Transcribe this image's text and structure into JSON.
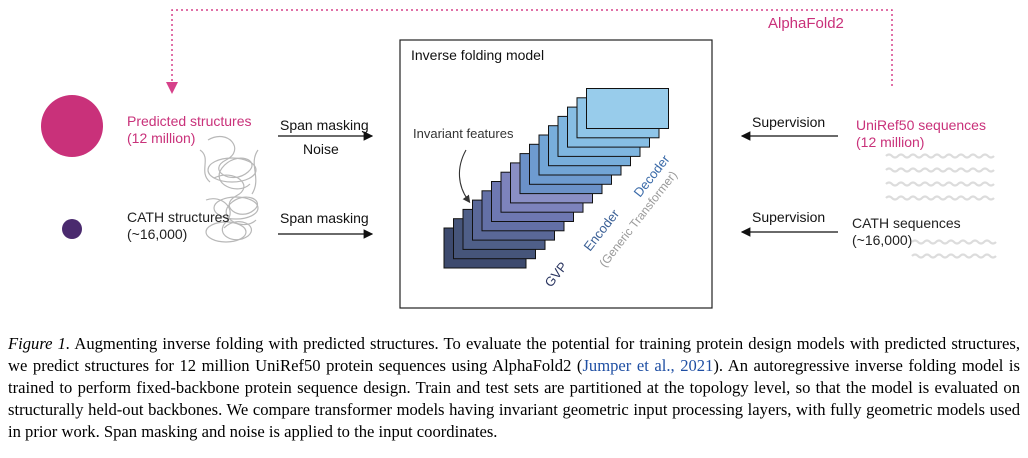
{
  "figure": {
    "alphafold_label": "AlphaFold2",
    "model_title": "Inverse folding model",
    "invariant_label": "Invariant features",
    "gvp_label": "GVP",
    "encoder_label": "Encoder",
    "decoder_label": "Decoder",
    "generic_label": "(Generic Transformer)",
    "left": {
      "predicted_title": "Predicted structures",
      "predicted_count": "(12 million)",
      "cath_title": "CATH structures",
      "cath_count": "(~16,000)",
      "span_masking_top": "Span masking",
      "noise": "Noise",
      "span_masking_bottom": "Span masking"
    },
    "right": {
      "supervision_top": "Supervision",
      "supervision_bottom": "Supervision",
      "uniref_title": "UniRef50 sequences",
      "uniref_count": "(12 million)",
      "cath_seq_title": "CATH sequences",
      "cath_seq_count": "(~16,000)"
    },
    "colors": {
      "magenta": "#c9317a",
      "dark_purple": "#4a2a6e",
      "dotted_arrow": "#d6418a"
    }
  },
  "caption": {
    "figure_label": "Figure 1.",
    "text_before_cite": " Augmenting inverse folding with predicted structures. To evaluate the potential for training protein design models with predicted structures, we predict structures for 12 million UniRef50 protein sequences using AlphaFold2 (",
    "cite_text": "Jumper et al., 2021",
    "text_after_cite": "). An autoregressive inverse folding model is trained to perform fixed-backbone protein sequence design. Train and test sets are partitioned at the topology level, so that the model is evaluated on structurally held-out backbones. We compare transformer models having invariant geometric input processing layers, with fully geometric models used in prior work. Span masking and noise is applied to the input coordinates."
  }
}
